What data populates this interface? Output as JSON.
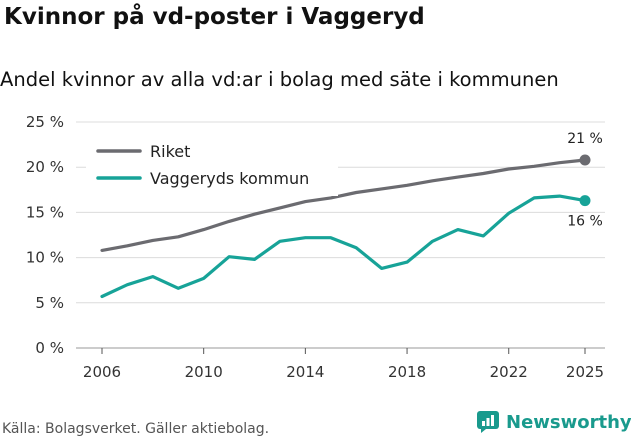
{
  "header": {
    "title": "Kvinnor på vd-poster i Vaggeryd",
    "subtitle": "Andel kvinnor av alla vd:ar i bolag med säte i kommunen"
  },
  "footer": {
    "source": "Källa: Bolagsverket. Gäller aktiebolag.",
    "brand": "Newsworthy"
  },
  "colors": {
    "riket": "#6b6b70",
    "kommun": "#17a398",
    "grid": "#dcdcdc",
    "brand": "#199a8d"
  },
  "chart_data": {
    "type": "line",
    "title": "Kvinnor på vd-poster i Vaggeryd",
    "subtitle": "Andel kvinnor av alla vd:ar i bolag med säte i kommunen",
    "xlabel": "",
    "ylabel": "",
    "ylim": [
      0,
      25
    ],
    "xlim": [
      2006,
      2025
    ],
    "y_ticks": [
      0,
      5,
      10,
      15,
      20,
      25
    ],
    "y_tick_labels": [
      "0 %",
      "5 %",
      "10 %",
      "15 %",
      "20 %",
      "25 %"
    ],
    "x_ticks": [
      2006,
      2010,
      2014,
      2018,
      2022,
      2025
    ],
    "x_tick_labels": [
      "2006",
      "2010",
      "2014",
      "2018",
      "2022",
      "2025"
    ],
    "grid": "horizontal",
    "legend": "top-left",
    "x": [
      2006,
      2007,
      2008,
      2009,
      2010,
      2011,
      2012,
      2013,
      2014,
      2015,
      2016,
      2017,
      2018,
      2019,
      2020,
      2021,
      2022,
      2023,
      2024,
      2025
    ],
    "series": [
      {
        "name": "Riket",
        "color": "#6b6b70",
        "end_label": "21 %",
        "values": [
          10.8,
          11.3,
          11.9,
          12.3,
          13.1,
          14.0,
          14.8,
          15.5,
          16.2,
          16.6,
          17.2,
          17.6,
          18.0,
          18.5,
          18.9,
          19.3,
          19.8,
          20.1,
          20.5,
          20.8
        ]
      },
      {
        "name": "Vaggeryds kommun",
        "color": "#17a398",
        "end_label": "16 %",
        "values": [
          5.7,
          7.0,
          7.9,
          6.6,
          7.7,
          10.1,
          9.8,
          11.8,
          12.2,
          12.2,
          11.1,
          8.8,
          9.5,
          11.8,
          13.1,
          12.4,
          14.9,
          16.6,
          16.8,
          16.3
        ]
      }
    ]
  }
}
